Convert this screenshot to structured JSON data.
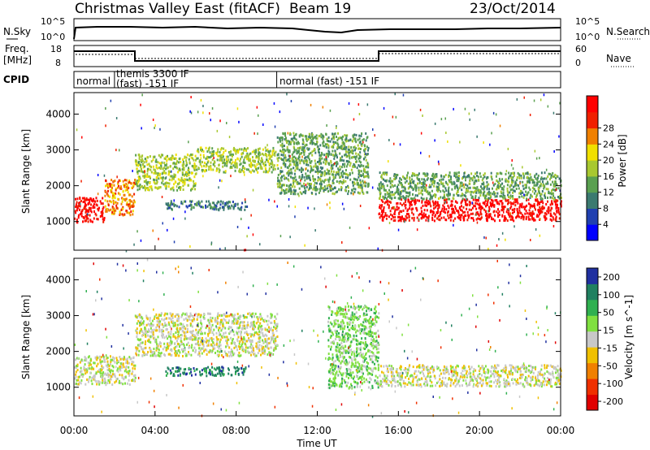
{
  "header": {
    "title": "Christmas Valley East (fitACF)",
    "beam": "Beam 19",
    "date": "23/Oct/2014"
  },
  "strips": {
    "nsky_label": "N.Sky",
    "nsearch_label": "N.Search",
    "noise_ticks": [
      "10^5",
      "10^0"
    ],
    "noise_ticks_right": [
      "10^5",
      "10^0"
    ],
    "freq_label_1": "Freq.",
    "freq_label_2": "[MHz]",
    "freq_ticks": [
      "18",
      "8"
    ],
    "nave_label": "Nave",
    "nave_ticks": [
      "60",
      "0"
    ],
    "cpid_label": "CPID",
    "cpid_segments": [
      {
        "start": 0,
        "end": 2,
        "label_1": "normal",
        "label_2": ""
      },
      {
        "start": 2,
        "end": 10,
        "label_1": "themis 3300 IF",
        "label_2": "(fast) -151 IF"
      },
      {
        "start": 10,
        "end": 24,
        "label_1": "normal (fast) -151 IF",
        "label_2": ""
      }
    ]
  },
  "chart_data": [
    {
      "type": "heatmap",
      "name": "power",
      "ylabel": "Slant Range [km]",
      "yticks": [
        "1000",
        "2000",
        "3000",
        "4000"
      ],
      "ylim": [
        200,
        4600
      ],
      "colorbar_label": "Power [dB]",
      "colorbar_ticks": [
        "4",
        "8",
        "12",
        "16",
        "20",
        "24",
        "28"
      ],
      "colors": [
        "#0000ff",
        "#2040b0",
        "#3b7a70",
        "#5aa050",
        "#a8c830",
        "#f0e000",
        "#f08000",
        "#f02000",
        "#ff0000"
      ],
      "bands": [
        {
          "x": [
            0.0,
            1.5
          ],
          "y": [
            1000,
            1700
          ],
          "level": 8
        },
        {
          "x": [
            1.5,
            3.0
          ],
          "y": [
            1200,
            2200
          ],
          "level": 6
        },
        {
          "x": [
            3.0,
            6.0
          ],
          "y": [
            1900,
            2900
          ],
          "level": 4
        },
        {
          "x": [
            6.0,
            10.0
          ],
          "y": [
            2400,
            3100
          ],
          "level": 4
        },
        {
          "x": [
            10.0,
            14.5
          ],
          "y": [
            1800,
            3500
          ],
          "level": 3
        },
        {
          "x": [
            4.5,
            8.5
          ],
          "y": [
            1350,
            1600
          ],
          "level": 2
        },
        {
          "x": [
            15.0,
            24.0
          ],
          "y": [
            1050,
            1650
          ],
          "level": 8
        },
        {
          "x": [
            15.0,
            24.0
          ],
          "y": [
            1650,
            2400
          ],
          "level": 3
        }
      ]
    },
    {
      "type": "heatmap",
      "name": "velocity",
      "ylabel": "Slant Range [km]",
      "yticks": [
        "1000",
        "2000",
        "3000",
        "4000"
      ],
      "ylim": [
        200,
        4600
      ],
      "xlabel": "Time UT",
      "xticks": [
        "00:00",
        "04:00",
        "08:00",
        "12:00",
        "16:00",
        "20:00",
        "00:00"
      ],
      "xlim": [
        0,
        24
      ],
      "colorbar_label": "Velocity [m s^-1]",
      "colorbar_ticks": [
        "200",
        "100",
        "50",
        "15",
        "-15",
        "-50",
        "-100",
        "-200"
      ],
      "colors": [
        "#2030a0",
        "#208060",
        "#30b050",
        "#80e040",
        "#c8c8c8",
        "#f0c000",
        "#f08000",
        "#f03000",
        "#e00000"
      ],
      "bands": [
        {
          "x": [
            0.0,
            3.0
          ],
          "y": [
            1100,
            1900
          ],
          "level": 4
        },
        {
          "x": [
            3.0,
            10.0
          ],
          "y": [
            1900,
            3100
          ],
          "level": 4
        },
        {
          "x": [
            4.5,
            8.5
          ],
          "y": [
            1350,
            1600
          ],
          "level": 1
        },
        {
          "x": [
            12.5,
            15.0
          ],
          "y": [
            1000,
            3300
          ],
          "level": 3
        },
        {
          "x": [
            15.0,
            24.0
          ],
          "y": [
            1050,
            1650
          ],
          "level": 4
        }
      ]
    }
  ]
}
